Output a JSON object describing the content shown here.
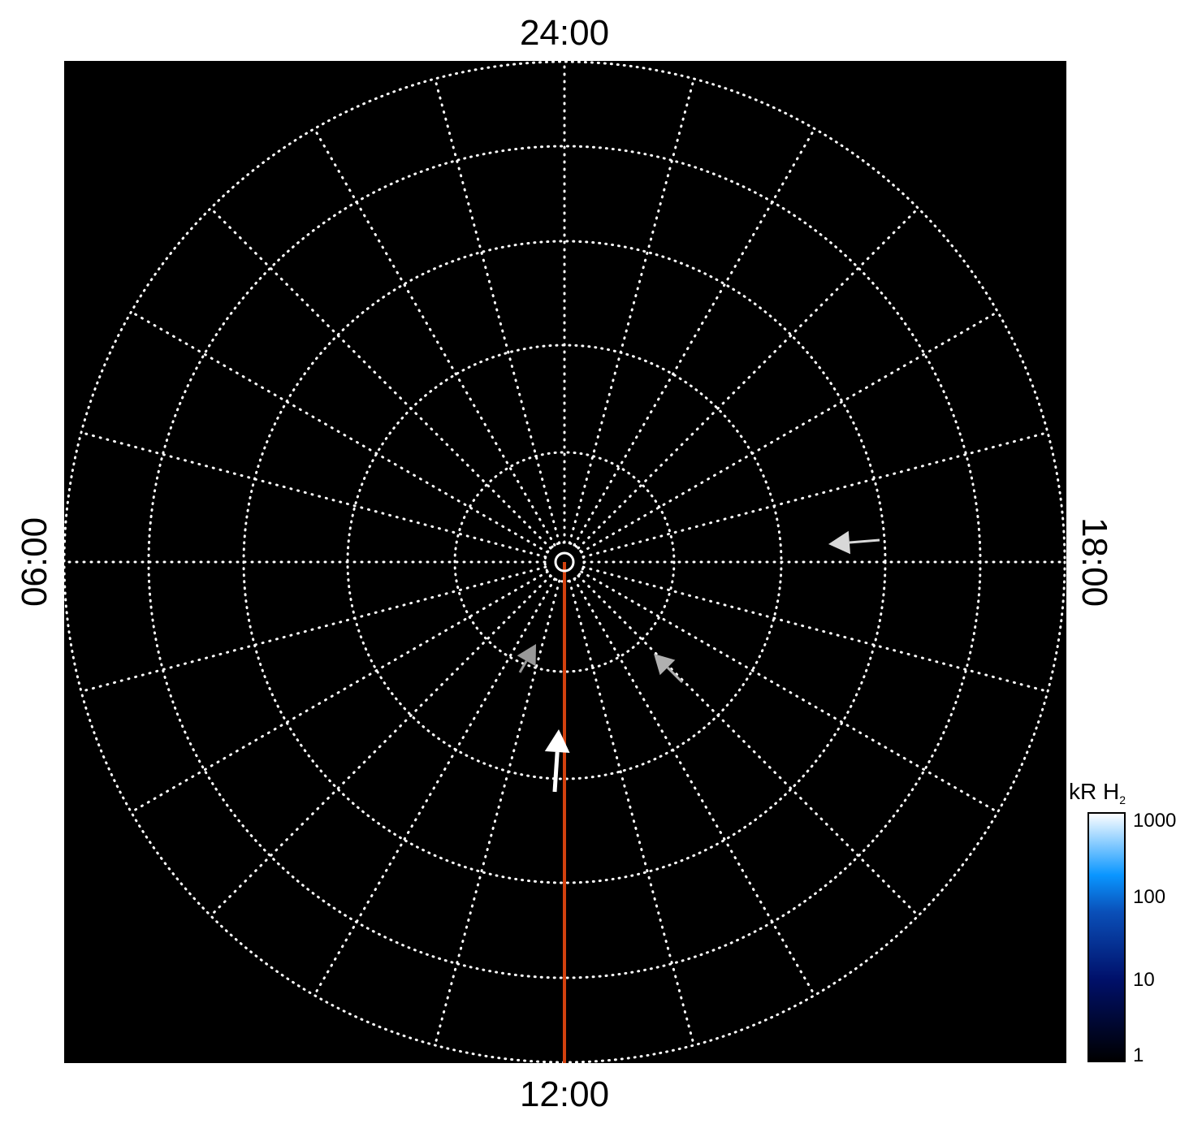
{
  "plot": {
    "type": "polar-projection",
    "background_color": "#000000",
    "grid_color": "#ffffff",
    "grid_style": "dotted",
    "hour_spokes": 24,
    "latitude_circles": 6,
    "local_time_labels": {
      "top": "24:00",
      "bottom": "12:00",
      "left": "06:00",
      "right": "18:00"
    },
    "meridian_line_color": "#d2410e",
    "arrows": [
      {
        "color": "#ffffff",
        "description": "white"
      },
      {
        "color": "#d8d8d8",
        "description": "light gray"
      },
      {
        "color": "#b0b0b0",
        "description": "gray"
      },
      {
        "color": "#999999",
        "description": "gray"
      }
    ]
  },
  "colorbar": {
    "title": "kR H",
    "title_subscript": "2",
    "scale": "log",
    "range": [
      1,
      1000
    ],
    "tick_labels": [
      "1000",
      "100",
      "10",
      "1"
    ],
    "colors": [
      "#000000",
      "#00106a",
      "#0a4fb8",
      "#0a96ff",
      "#ffffff"
    ]
  }
}
